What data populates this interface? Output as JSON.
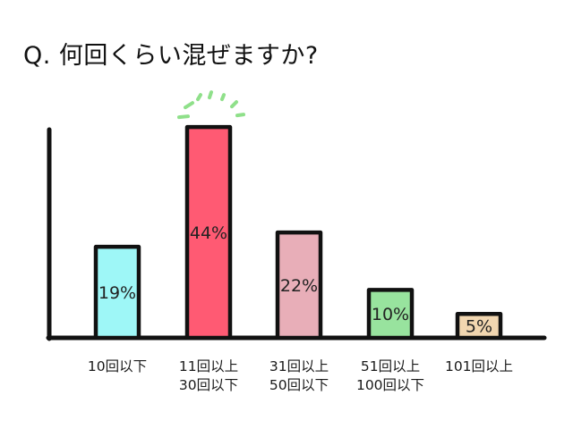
{
  "chart_data": {
    "type": "bar",
    "title": "Q. 何回くらい混ぜますか?",
    "xlabel": "",
    "ylabel": "",
    "ylim": [
      0,
      50
    ],
    "grid": false,
    "legend": "none",
    "categories": [
      [
        "10回以下"
      ],
      [
        "11回以上",
        "30回以下"
      ],
      [
        "31回以上",
        "50回以下"
      ],
      [
        "51回以上",
        "100回以下"
      ],
      [
        "101回以上"
      ]
    ],
    "series": [
      {
        "values": [
          19,
          44,
          22,
          10,
          5
        ]
      }
    ],
    "value_labels": [
      "19%",
      "44%",
      "22%",
      "10%",
      "5%"
    ],
    "colors": [
      "#9ef7f7",
      "#ff5a73",
      "#e8aeb8",
      "#98e39e",
      "#f1d6b0"
    ],
    "highlight_index": 1,
    "highlight_color": "#8fe08a",
    "outline_color": "#111111"
  }
}
